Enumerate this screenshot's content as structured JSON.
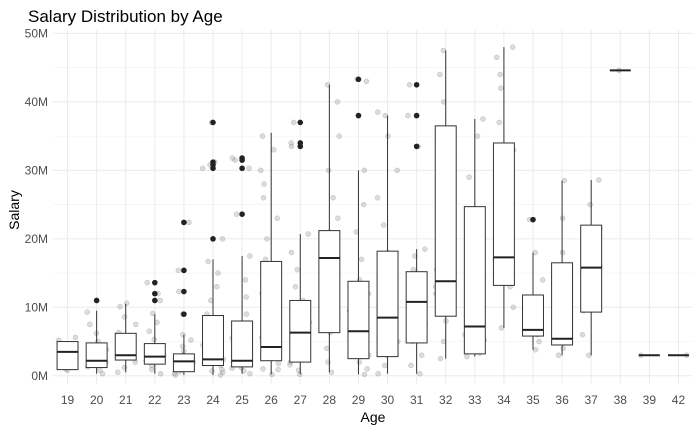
{
  "chart_data": {
    "type": "boxplot",
    "title": "Salary Distribution by Age",
    "xlabel": "Age",
    "ylabel": "Salary",
    "y_unit": "M",
    "ylim": [
      -1.2,
      50.5
    ],
    "yticks": [
      0,
      10,
      20,
      30,
      40,
      50
    ],
    "ytick_labels": [
      "0M",
      "10M",
      "20M",
      "30M",
      "40M",
      "50M"
    ],
    "grid": true,
    "legend": "none",
    "categories": [
      "19",
      "20",
      "21",
      "22",
      "23",
      "24",
      "25",
      "26",
      "27",
      "28",
      "29",
      "30",
      "31",
      "32",
      "33",
      "34",
      "35",
      "36",
      "37",
      "38",
      "39",
      "42"
    ],
    "boxes": [
      {
        "age": "19",
        "q1": 0.9,
        "median": 3.5,
        "q3": 5.0,
        "lower": 0.9,
        "upper": 5.0,
        "outliers": []
      },
      {
        "age": "20",
        "q1": 1.2,
        "median": 2.2,
        "q3": 4.8,
        "lower": 0.3,
        "upper": 9.5,
        "outliers": [
          11.0
        ]
      },
      {
        "age": "21",
        "q1": 2.3,
        "median": 3.0,
        "q3": 6.2,
        "lower": 0.5,
        "upper": 10.5,
        "outliers": []
      },
      {
        "age": "22",
        "q1": 1.7,
        "median": 2.8,
        "q3": 4.7,
        "lower": 0.3,
        "upper": 9.0,
        "outliers": [
          11.0,
          12.0,
          13.6
        ]
      },
      {
        "age": "23",
        "q1": 0.6,
        "median": 2.1,
        "q3": 3.2,
        "lower": 0.1,
        "upper": 6.0,
        "outliers": [
          9.0,
          12.3,
          15.4,
          22.4
        ]
      },
      {
        "age": "24",
        "q1": 1.5,
        "median": 2.4,
        "q3": 8.8,
        "lower": 0.1,
        "upper": 17.0,
        "outliers": [
          20.0,
          30.3,
          30.8,
          31.2,
          37.0
        ]
      },
      {
        "age": "25",
        "q1": 1.3,
        "median": 2.2,
        "q3": 8.0,
        "lower": 0.3,
        "upper": 17.5,
        "outliers": [
          23.6,
          30.3,
          31.5,
          31.8
        ]
      },
      {
        "age": "26",
        "q1": 2.2,
        "median": 4.2,
        "q3": 16.7,
        "lower": 0.2,
        "upper": 35.5,
        "outliers": []
      },
      {
        "age": "27",
        "q1": 2.0,
        "median": 6.3,
        "q3": 11.0,
        "lower": 0.2,
        "upper": 20.7,
        "outliers": [
          33.5,
          34.0,
          37.0
        ]
      },
      {
        "age": "28",
        "q1": 6.3,
        "median": 17.2,
        "q3": 21.2,
        "lower": 0.5,
        "upper": 42.5,
        "outliers": []
      },
      {
        "age": "29",
        "q1": 2.5,
        "median": 6.5,
        "q3": 13.8,
        "lower": 0.2,
        "upper": 30.0,
        "outliers": [
          38.0,
          43.3
        ]
      },
      {
        "age": "30",
        "q1": 2.8,
        "median": 8.5,
        "q3": 18.2,
        "lower": 0.3,
        "upper": 38.0,
        "outliers": []
      },
      {
        "age": "31",
        "q1": 4.8,
        "median": 10.8,
        "q3": 15.2,
        "lower": 0.3,
        "upper": 18.5,
        "outliers": [
          33.5,
          38.0,
          42.5
        ]
      },
      {
        "age": "32",
        "q1": 8.7,
        "median": 13.8,
        "q3": 36.5,
        "lower": 2.5,
        "upper": 47.5,
        "outliers": []
      },
      {
        "age": "33",
        "q1": 3.2,
        "median": 7.2,
        "q3": 24.7,
        "lower": 2.8,
        "upper": 37.5,
        "outliers": []
      },
      {
        "age": "34",
        "q1": 13.2,
        "median": 17.3,
        "q3": 34.0,
        "lower": 7.0,
        "upper": 48.0,
        "outliers": []
      },
      {
        "age": "35",
        "q1": 5.8,
        "median": 6.7,
        "q3": 11.8,
        "lower": 3.8,
        "upper": 18.0,
        "outliers": [
          22.8
        ]
      },
      {
        "age": "36",
        "q1": 4.5,
        "median": 5.4,
        "q3": 16.5,
        "lower": 3.0,
        "upper": 28.5,
        "outliers": []
      },
      {
        "age": "37",
        "q1": 9.3,
        "median": 15.8,
        "q3": 22.0,
        "lower": 3.0,
        "upper": 28.6,
        "outliers": []
      },
      {
        "age": "38",
        "q1": 44.6,
        "median": 44.6,
        "q3": 44.6,
        "lower": 44.6,
        "upper": 44.6,
        "outliers": []
      },
      {
        "age": "39",
        "q1": 3.0,
        "median": 3.0,
        "q3": 3.0,
        "lower": 3.0,
        "upper": 3.0,
        "outliers": []
      },
      {
        "age": "42",
        "q1": 3.0,
        "median": 3.0,
        "q3": 3.0,
        "lower": 3.0,
        "upper": 3.0,
        "outliers": []
      }
    ],
    "jitter_points": {
      "19": [
        0.8,
        1.5,
        2.2,
        3.0,
        3.8,
        4.5,
        5.2,
        5.6,
        2.6,
        1.0,
        4.1
      ],
      "20": [
        0.3,
        0.8,
        1.3,
        1.8,
        2.5,
        3.3,
        4.2,
        5.0,
        6.2,
        7.5,
        9.3,
        2.0,
        3.8
      ],
      "21": [
        0.5,
        1.2,
        2.0,
        2.6,
        3.1,
        3.5,
        4.3,
        5.2,
        6.3,
        7.5,
        8.6,
        10.1,
        10.6,
        2.8,
        3.9
      ],
      "22": [
        0.3,
        0.9,
        1.5,
        2.2,
        2.9,
        3.6,
        4.4,
        5.3,
        6.5,
        7.8,
        9.1,
        11.0,
        12.0,
        13.6,
        2.5,
        3.2
      ],
      "23": [
        0.1,
        0.4,
        0.8,
        1.2,
        1.6,
        2.0,
        2.5,
        3.0,
        3.6,
        4.3,
        5.2,
        6.0,
        9.0,
        12.3,
        15.4,
        22.4,
        1.8,
        0.6,
        2.8
      ],
      "24": [
        0.1,
        0.5,
        0.9,
        1.5,
        2.0,
        2.6,
        3.4,
        4.5,
        6.0,
        7.5,
        9.0,
        11.0,
        13.0,
        15.0,
        16.7,
        20.0,
        30.3,
        30.8,
        31.2,
        37.0,
        1.8,
        2.4,
        0.7
      ],
      "25": [
        0.3,
        0.7,
        1.2,
        1.7,
        2.3,
        3.0,
        4.1,
        5.5,
        7.2,
        9.0,
        11.5,
        14.0,
        17.5,
        23.6,
        30.3,
        31.5,
        31.8,
        2.0,
        1.1
      ],
      "26": [
        0.2,
        0.9,
        1.8,
        2.7,
        4.0,
        5.6,
        7.6,
        9.8,
        12.0,
        14.5,
        17.0,
        20.0,
        23.0,
        26.0,
        28.0,
        30.0,
        33.0,
        35.0,
        3.3,
        1.0
      ],
      "27": [
        0.2,
        0.8,
        1.6,
        2.5,
        3.5,
        4.8,
        6.3,
        7.8,
        9.5,
        11.0,
        13.0,
        15.5,
        18.0,
        20.7,
        33.5,
        34.0,
        37.0,
        5.5,
        2.0
      ],
      "28": [
        0.5,
        2.0,
        4.0,
        6.3,
        8.5,
        11.0,
        13.5,
        16.0,
        17.5,
        19.0,
        21.0,
        23.0,
        26.0,
        30.0,
        35.0,
        40.0,
        42.5,
        12.0,
        7.5
      ],
      "29": [
        0.2,
        1.0,
        2.0,
        3.0,
        4.5,
        6.0,
        7.5,
        9.5,
        12.0,
        14.0,
        17.0,
        21.0,
        25.0,
        30.0,
        38.0,
        43.3,
        43.0,
        5.0
      ],
      "30": [
        0.3,
        1.5,
        3.0,
        5.0,
        7.0,
        8.5,
        10.0,
        12.5,
        15.0,
        18.0,
        22.0,
        26.0,
        30.0,
        35.0,
        38.5,
        38.0,
        4.0
      ],
      "31": [
        0.3,
        1.5,
        3.0,
        5.0,
        7.5,
        9.5,
        11.0,
        12.5,
        14.0,
        15.5,
        17.5,
        18.5,
        33.5,
        38.0,
        42.5,
        8.0
      ],
      "32": [
        2.5,
        5.0,
        8.0,
        10.5,
        13.0,
        15.5,
        18.0,
        22.0,
        27.0,
        32.0,
        36.0,
        40.0,
        44.0,
        47.5,
        12.0
      ],
      "33": [
        2.8,
        3.3,
        4.5,
        6.0,
        7.5,
        9.0,
        12.0,
        15.0,
        19.0,
        24.0,
        29.0,
        35.0,
        37.5,
        5.2
      ],
      "34": [
        7.0,
        10.0,
        13.0,
        15.5,
        17.0,
        18.5,
        21.0,
        25.0,
        29.0,
        33.0,
        37.0,
        42.0,
        44.0,
        46.5,
        48.0
      ],
      "35": [
        3.8,
        5.0,
        6.0,
        6.8,
        7.8,
        9.5,
        11.5,
        14.0,
        18.0,
        22.8
      ],
      "36": [
        3.0,
        4.0,
        4.8,
        5.6,
        6.5,
        9.0,
        13.0,
        18.0,
        23.0,
        28.5
      ],
      "37": [
        3.0,
        6.0,
        9.5,
        13.0,
        16.0,
        18.5,
        21.5,
        25.0,
        28.6
      ],
      "38": [
        44.6
      ],
      "39": [
        3.0
      ],
      "42": [
        3.0
      ]
    }
  }
}
